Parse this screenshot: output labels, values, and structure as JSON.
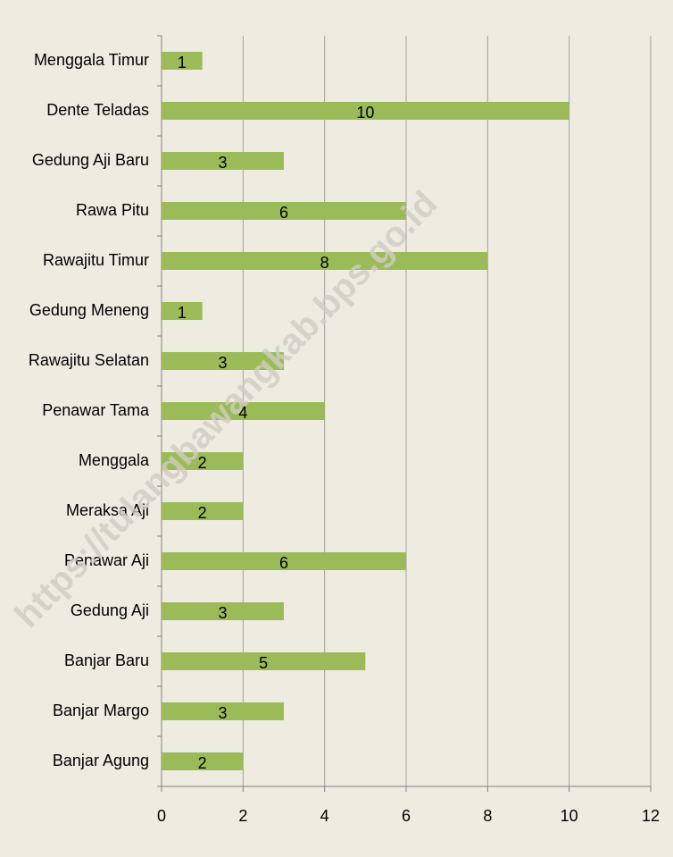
{
  "chart_data": {
    "type": "bar",
    "orientation": "horizontal",
    "categories": [
      "Menggala Timur",
      "Dente Teladas",
      "Gedung Aji Baru",
      "Rawa Pitu",
      "Rawajitu Timur",
      "Gedung Meneng",
      "Rawajitu Selatan",
      "Penawar Tama",
      "Menggala",
      "Meraksa Aji",
      "Penawar Aji",
      "Gedung Aji",
      "Banjar Baru",
      "Banjar Margo",
      "Banjar Agung"
    ],
    "values": [
      1,
      10,
      3,
      6,
      8,
      1,
      3,
      4,
      2,
      2,
      6,
      3,
      5,
      3,
      2
    ],
    "color": "#9bbb59",
    "xlim": [
      0,
      12
    ],
    "xticks": [
      0,
      2,
      4,
      6,
      8,
      10,
      12
    ],
    "grid": true,
    "watermark": "https://tulangbawangkab.bps.go.id"
  }
}
